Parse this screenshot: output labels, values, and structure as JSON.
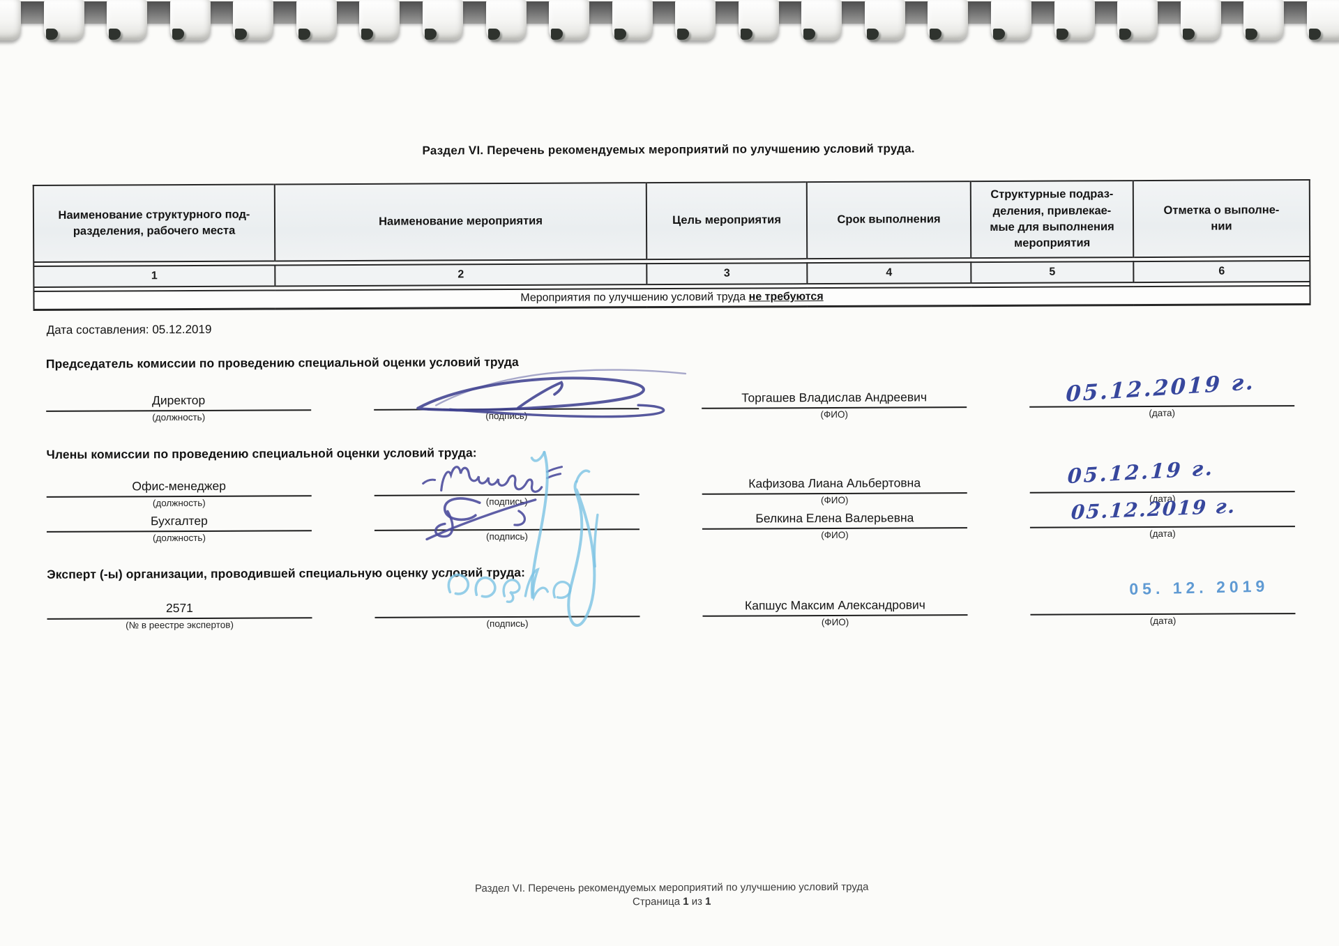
{
  "title": "Раздел VI. Перечень рекомендуемых мероприятий по улучшению условий труда.",
  "table": {
    "headers": [
      "Наименование структурного под-\nразделения, рабочего места",
      "Наименование мероприятия",
      "Цель мероприятия",
      "Срок выполнения",
      "Структурные подраз-\nделения, привлекае-\nмые для выполнения\nмероприятия",
      "Отметка о выполне-\nнии"
    ],
    "column_numbers": [
      "1",
      "2",
      "3",
      "4",
      "5",
      "6"
    ],
    "empty_note_prefix": "Мероприятия по улучшению условий труда ",
    "empty_note_emphasis": "не требуются"
  },
  "composition_date": {
    "label": "Дата составления:",
    "value": "05.12.2019"
  },
  "labels": {
    "position": "(должность)",
    "signature": "(подпись)",
    "name": "(ФИО)",
    "date": "(дата)",
    "registry_number": "(№ в реестре экспертов)"
  },
  "chairman": {
    "heading": "Председатель комиссии по проведению специальной оценки условий труда",
    "position": "Директор",
    "name": "Торгашев Владислав Андреевич",
    "date_handwritten": "05.12.2019 г."
  },
  "members": {
    "heading": "Члены комиссии по проведению специальной оценки условий труда:",
    "rows": [
      {
        "position": "Офис-менеджер",
        "name": "Кафизова Лиана Альбертовна",
        "date_handwritten": "05.12.19 г."
      },
      {
        "position": "Бухгалтер",
        "name": "Белкина Елена Валерьевна",
        "date_handwritten": "05.12.2019 г."
      }
    ]
  },
  "expert": {
    "heading": "Эксперт (-ы) организации, проводившей специальную оценку условий труда:",
    "registry_number": "2571",
    "name": "Капшус Максим Александрович",
    "date_stamp": "05. 12. 2019"
  },
  "footer": {
    "line1": "Раздел VI. Перечень рекомендуемых мероприятий по улучшению условий труда",
    "page_label": "Страница",
    "page_number": "1",
    "of_label": "из",
    "page_total": "1"
  },
  "ink_colors": {
    "chairman": "#3f418f",
    "members": "#4c4c9c",
    "expert": "#7cc3e3",
    "dates": "#37479d",
    "stamp": "#5f9ad3"
  }
}
